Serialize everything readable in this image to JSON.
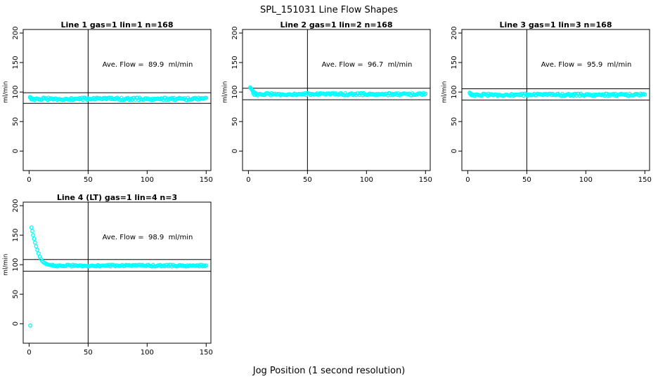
{
  "figure": {
    "title": "SPL_151031  Line Flow Shapes",
    "xlabel": "Jog Position (1 second resolution)",
    "ylabel": "ml/min",
    "point_color": "#00FFFF",
    "axis_color": "#000000",
    "background": "#FFFFFF"
  },
  "chart_data": {
    "type": "scatter",
    "title": "SPL_151031  Line Flow Shapes",
    "xlabel": "Jog Position (1 second resolution)",
    "ylabel": "ml/min",
    "x_ticks": [
      0,
      50,
      100,
      150
    ],
    "y_ticks": [
      0,
      50,
      100,
      150,
      200
    ],
    "xlim": [
      -5,
      154
    ],
    "ylim": [
      -33,
      206
    ],
    "grid": false,
    "legend": "none",
    "vline_x": 50,
    "marker": "open-circle",
    "panels": [
      {
        "title": "Line 1 gas=1 lin=1 n=168",
        "annotation": "Ave. Flow =  89.9  ml/min",
        "ave_flow": 89.9,
        "ref_lines": [
          98.9,
          80.9
        ],
        "head_points": [
          [
            0.8,
            91.5
          ],
          [
            1.6,
            90.2
          ],
          [
            2.4,
            89.4
          ]
        ],
        "steady": {
          "x_start": 1,
          "x_end": 150,
          "n": 165,
          "y": 88.4,
          "spread": 2.0
        }
      },
      {
        "title": "Line 2 gas=1 lin=2 n=168",
        "annotation": "Ave. Flow =  96.7  ml/min",
        "ave_flow": 96.7,
        "ref_lines": [
          106.4,
          87.0
        ],
        "head_points": [
          [
            1.5,
            108
          ],
          [
            2.0,
            106.5
          ],
          [
            2.6,
            105
          ],
          [
            3.2,
            103.2
          ],
          [
            3.8,
            101.5
          ],
          [
            4.5,
            100.2
          ],
          [
            5.5,
            98.8
          ],
          [
            6.5,
            97.8
          ]
        ],
        "steady": {
          "x_start": 4,
          "x_end": 150,
          "n": 160,
          "y": 96.3,
          "spread": 1.8
        }
      },
      {
        "title": "Line 3 gas=1 lin=3 n=168",
        "annotation": "Ave. Flow =  95.9  ml/min",
        "ave_flow": 95.9,
        "ref_lines": [
          105.5,
          86.3
        ],
        "head_points": [
          [
            1.6,
            99.0
          ],
          [
            2.4,
            97.6
          ],
          [
            3.2,
            96.6
          ]
        ],
        "steady": {
          "x_start": 2,
          "x_end": 150,
          "n": 162,
          "y": 95.4,
          "spread": 1.8
        }
      },
      {
        "title": "Line 4 (LT) gas=1 lin=4 n=3",
        "annotation": "Ave. Flow =  98.9  ml/min",
        "ave_flow": 98.9,
        "ref_lines": [
          108.8,
          89.0
        ],
        "head_points": [
          [
            1,
            -3
          ],
          [
            2,
            163
          ],
          [
            2.7,
            157
          ],
          [
            3.4,
            150
          ],
          [
            4.2,
            144
          ],
          [
            5,
            137.5
          ],
          [
            6,
            131
          ],
          [
            7,
            125
          ],
          [
            8,
            119
          ],
          [
            9,
            113.5
          ],
          [
            10,
            109.5
          ],
          [
            11,
            106.5
          ],
          [
            12,
            104.5
          ],
          [
            13,
            103
          ],
          [
            14,
            101.8
          ],
          [
            15,
            100.9
          ],
          [
            16,
            100.3
          ],
          [
            17,
            99.8
          ],
          [
            18,
            99.4
          ],
          [
            19,
            99.1
          ],
          [
            20,
            98.9
          ]
        ],
        "steady": {
          "x_start": 20,
          "x_end": 150,
          "n": 131,
          "y": 98.4,
          "spread": 1.4
        }
      }
    ]
  }
}
